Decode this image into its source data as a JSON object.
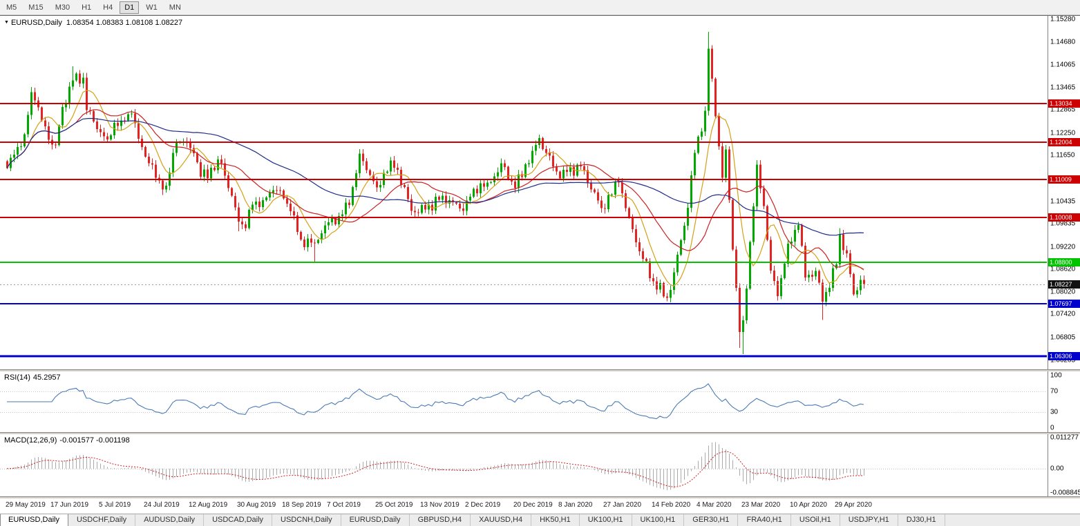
{
  "toolbar": {
    "timeframes": [
      "M5",
      "M15",
      "M30",
      "H1",
      "H4",
      "D1",
      "W1",
      "MN"
    ],
    "active": "D1"
  },
  "chart": {
    "symbol_label": "EURUSD,Daily",
    "ohlc_text": "1.08354 1.08383 1.08108 1.08227",
    "current_price": {
      "value": 1.08227,
      "label": "1.08227",
      "tag_color": "#111111"
    },
    "hlines": [
      {
        "value": 1.13034,
        "label": "1.13034",
        "color": "#cc0000",
        "width": 2
      },
      {
        "value": 1.12004,
        "label": "1.12004",
        "color": "#cc0000",
        "width": 2
      },
      {
        "value": 1.11009,
        "label": "1.11009",
        "color": "#cc0000",
        "width": 2
      },
      {
        "value": 1.10008,
        "label": "1.10008",
        "color": "#cc0000",
        "width": 2
      },
      {
        "value": 1.088,
        "label": "1.08800",
        "color": "#00c400",
        "width": 2
      },
      {
        "value": 1.07697,
        "label": "1.07697",
        "color": "#0000cc",
        "width": 2
      },
      {
        "value": 1.06306,
        "label": "1.06306",
        "color": "#0000cc",
        "width": 3
      }
    ],
    "price_axis_ticks": [
      "1.15280",
      "1.14680",
      "1.14065",
      "1.13465",
      "1.12865",
      "1.12250",
      "1.11650",
      "1.11035",
      "1.10435",
      "1.09835",
      "1.09220",
      "1.08620",
      "1.08020",
      "1.07420",
      "1.06805",
      "1.06205"
    ],
    "colors": {
      "up": "#00a800",
      "down": "#e32222",
      "background": "#ffffff"
    }
  },
  "chart_data": {
    "type": "candlestick",
    "symbol": "EURUSD",
    "timeframe": "Daily",
    "last_ohlc": {
      "open": 1.08354,
      "high": 1.08383,
      "low": 1.08108,
      "close": 1.08227
    },
    "x_labels": [
      [
        0,
        "29 May 2019"
      ],
      [
        13,
        "17 Jun 2019"
      ],
      [
        27,
        "5 Jul 2019"
      ],
      [
        40,
        "24 Jul 2019"
      ],
      [
        53,
        "12 Aug 2019"
      ],
      [
        67,
        "30 Aug 2019"
      ],
      [
        80,
        "18 Sep 2019"
      ],
      [
        93,
        "7 Oct 2019"
      ],
      [
        107,
        "25 Oct 2019"
      ],
      [
        120,
        "13 Nov 2019"
      ],
      [
        133,
        "2 Dec 2019"
      ],
      [
        147,
        "20 Dec 2019"
      ],
      [
        160,
        "8 Jan 2020"
      ],
      [
        173,
        "27 Jan 2020"
      ],
      [
        187,
        "14 Feb 2020"
      ],
      [
        200,
        "4 Mar 2020"
      ],
      [
        213,
        "23 Mar 2020"
      ],
      [
        227,
        "10 Apr 2020"
      ],
      [
        240,
        "29 Apr 2020"
      ]
    ],
    "close_anchors": [
      [
        0,
        1.1132
      ],
      [
        2,
        1.1168
      ],
      [
        5,
        1.1222
      ],
      [
        7,
        1.1334
      ],
      [
        8,
        1.1312
      ],
      [
        12,
        1.1207
      ],
      [
        14,
        1.1193
      ],
      [
        16,
        1.1294
      ],
      [
        19,
        1.1365
      ],
      [
        22,
        1.1373
      ],
      [
        23,
        1.1286
      ],
      [
        27,
        1.1227
      ],
      [
        29,
        1.1208
      ],
      [
        31,
        1.1252
      ],
      [
        33,
        1.1259
      ],
      [
        36,
        1.1277
      ],
      [
        38,
        1.121
      ],
      [
        41,
        1.1145
      ],
      [
        45,
        1.1075
      ],
      [
        46,
        1.1085
      ],
      [
        49,
        1.12
      ],
      [
        52,
        1.1199
      ],
      [
        54,
        1.1171
      ],
      [
        56,
        1.1109
      ],
      [
        62,
        1.1145
      ],
      [
        67,
        1.0989
      ],
      [
        69,
        1.0972
      ],
      [
        71,
        1.1034
      ],
      [
        74,
        1.1046
      ],
      [
        77,
        1.1073
      ],
      [
        79,
        1.1072
      ],
      [
        82,
        1.1017
      ],
      [
        85,
        1.0941
      ],
      [
        89,
        1.0932
      ],
      [
        92,
        1.0979
      ],
      [
        96,
        1.1004
      ],
      [
        99,
        1.1033
      ],
      [
        102,
        1.117
      ],
      [
        103,
        1.115
      ],
      [
        107,
        1.108
      ],
      [
        111,
        1.1152
      ],
      [
        113,
        1.1127
      ],
      [
        117,
        1.1018
      ],
      [
        121,
        1.1021
      ],
      [
        126,
        1.1058
      ],
      [
        132,
        1.1018
      ],
      [
        135,
        1.1077
      ],
      [
        139,
        1.1093
      ],
      [
        142,
        1.1121
      ],
      [
        143,
        1.1145
      ],
      [
        147,
        1.1078
      ],
      [
        152,
        1.1178
      ],
      [
        154,
        1.1212
      ],
      [
        156,
        1.1172
      ],
      [
        160,
        1.1104
      ],
      [
        162,
        1.1122
      ],
      [
        166,
        1.1136
      ],
      [
        172,
        1.1025
      ],
      [
        177,
        1.1093
      ],
      [
        180,
        1.1
      ],
      [
        183,
        1.091
      ],
      [
        187,
        1.083
      ],
      [
        191,
        1.0786
      ],
      [
        193,
        1.0854
      ],
      [
        197,
        1.1026
      ],
      [
        199,
        1.1172
      ],
      [
        202,
        1.1284
      ],
      [
        203,
        1.145
      ],
      [
        205,
        1.127
      ],
      [
        207,
        1.1106
      ],
      [
        208,
        1.1181
      ],
      [
        210,
        1.0915
      ],
      [
        212,
        1.0695
      ],
      [
        213,
        1.0726
      ],
      [
        216,
        1.103
      ],
      [
        217,
        1.1141
      ],
      [
        219,
        1.1031
      ],
      [
        221,
        1.0859
      ],
      [
        223,
        1.0791
      ],
      [
        226,
        1.093
      ],
      [
        229,
        1.098
      ],
      [
        231,
        1.084
      ],
      [
        234,
        1.0858
      ],
      [
        236,
        1.0776
      ],
      [
        240,
        1.0875
      ],
      [
        241,
        1.0955
      ],
      [
        243,
        1.0905
      ],
      [
        245,
        1.0795
      ],
      [
        247,
        1.0834
      ],
      [
        248,
        1.08227
      ]
    ],
    "extremes": [
      [
        7,
        "high",
        1.1348
      ],
      [
        19,
        "high",
        1.1403
      ],
      [
        45,
        "low",
        1.106
      ],
      [
        67,
        "low",
        1.0963
      ],
      [
        89,
        "low",
        1.0879
      ],
      [
        102,
        "high",
        1.1179
      ],
      [
        191,
        "low",
        1.0778
      ],
      [
        203,
        "high",
        1.1495
      ],
      [
        212,
        "low",
        1.0653
      ],
      [
        213,
        "low",
        1.0636
      ],
      [
        217,
        "high",
        1.1148
      ],
      [
        236,
        "low",
        1.0727
      ],
      [
        241,
        "high",
        1.0972
      ]
    ],
    "moving_averages": [
      {
        "period": 8,
        "color": "#d4a017"
      },
      {
        "period": 21,
        "color": "#cc2020"
      },
      {
        "period": 55,
        "color": "#1f2d8a"
      }
    ]
  },
  "rsi": {
    "name": "RSI(14)",
    "value": "45.2957",
    "period": 14,
    "axis_ticks": [
      "100",
      "70",
      "30",
      "0"
    ],
    "levels": [
      70,
      30
    ],
    "color": "#4a7ab5"
  },
  "macd": {
    "name": "MACD(12,26,9)",
    "values": "-0.001577 -0.001198",
    "fast": 12,
    "slow": 26,
    "signal": 9,
    "axis_ticks": [
      "0.011277",
      "0.00",
      "-0.008845"
    ],
    "scale_top": 0.011277,
    "scale_bottom": -0.008845,
    "histogram_color": "#aaaaaa",
    "signal_color": "#d02020"
  },
  "tabs": {
    "active_index": 0,
    "items": [
      "EURUSD,Daily",
      "USDCHF,Daily",
      "AUDUSD,Daily",
      "USDCAD,Daily",
      "USDCNH,Daily",
      "EURUSD,Daily",
      "GBPUSD,H4",
      "XAUUSD,H4",
      "HK50,H1",
      "UK100,H1",
      "UK100,H1",
      "GER30,H1",
      "FRA40,H1",
      "USOil,H1",
      "USDJPY,H1",
      "DJ30,H1"
    ]
  }
}
